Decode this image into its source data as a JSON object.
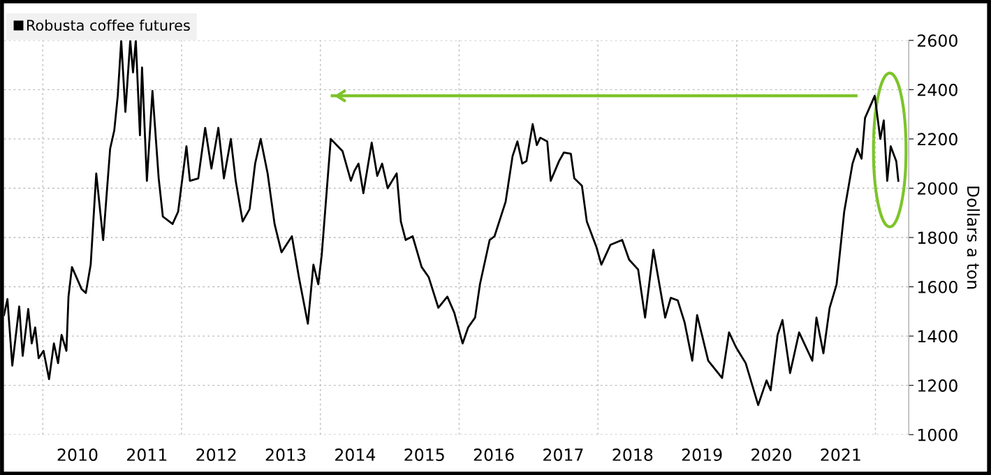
{
  "chart_data": {
    "type": "line",
    "ylabel": "Dollars a ton",
    "legend": "top left",
    "grid": true,
    "xlim": [
      2009.44,
      2022.48
    ],
    "ylim": [
      1000,
      2600
    ],
    "xticks": [
      {
        "value": 2010,
        "label": null
      },
      {
        "value": 2010.5,
        "label": "2010"
      },
      {
        "value": 2011.5,
        "label": "2011"
      },
      {
        "value": 2012,
        "label": null
      },
      {
        "value": 2012.5,
        "label": "2012"
      },
      {
        "value": 2013.5,
        "label": "2013"
      },
      {
        "value": 2014,
        "label": null
      },
      {
        "value": 2014.5,
        "label": "2014"
      },
      {
        "value": 2015.5,
        "label": "2015"
      },
      {
        "value": 2016,
        "label": null
      },
      {
        "value": 2016.5,
        "label": "2016"
      },
      {
        "value": 2017.5,
        "label": "2017"
      },
      {
        "value": 2018,
        "label": null
      },
      {
        "value": 2018.5,
        "label": "2018"
      },
      {
        "value": 2019.5,
        "label": "2019"
      },
      {
        "value": 2020,
        "label": null
      },
      {
        "value": 2020.5,
        "label": "2020"
      },
      {
        "value": 2021.5,
        "label": "2021"
      },
      {
        "value": 2022,
        "label": null
      }
    ],
    "yticks": [
      1000,
      1200,
      1400,
      1600,
      1800,
      2000,
      2200,
      2400,
      2600
    ],
    "series": [
      {
        "name": "Robusta coffee futures",
        "color": "#000000",
        "x": [
          2009.44,
          2009.49,
          2009.56,
          2009.66,
          2009.71,
          2009.79,
          2009.84,
          2009.89,
          2009.94,
          2010.01,
          2010.09,
          2010.16,
          2010.22,
          2010.27,
          2010.34,
          2010.37,
          2010.42,
          2010.56,
          2010.62,
          2010.69,
          2010.77,
          2010.87,
          2010.97,
          2011.03,
          2011.08,
          2011.13,
          2011.19,
          2011.26,
          2011.3,
          2011.34,
          2011.4,
          2011.43,
          2011.5,
          2011.58,
          2011.67,
          2011.73,
          2011.87,
          2011.95,
          2012.07,
          2012.12,
          2012.24,
          2012.34,
          2012.43,
          2012.53,
          2012.61,
          2012.71,
          2012.78,
          2012.88,
          2012.98,
          2013.06,
          2013.14,
          2013.24,
          2013.34,
          2013.44,
          2013.59,
          2013.69,
          2013.82,
          2013.9,
          2013.97,
          2014.02,
          2014.15,
          2014.32,
          2014.44,
          2014.49,
          2014.55,
          2014.62,
          2014.74,
          2014.82,
          2014.89,
          2014.97,
          2015.1,
          2015.16,
          2015.23,
          2015.33,
          2015.46,
          2015.56,
          2015.7,
          2015.83,
          2015.93,
          2016.05,
          2016.13,
          2016.23,
          2016.3,
          2016.44,
          2016.51,
          2016.67,
          2016.77,
          2016.84,
          2016.91,
          2016.97,
          2017.06,
          2017.12,
          2017.17,
          2017.27,
          2017.32,
          2017.44,
          2017.51,
          2017.61,
          2017.66,
          2017.77,
          2017.84,
          2017.98,
          2018.05,
          2018.18,
          2018.35,
          2018.45,
          2018.58,
          2018.68,
          2018.8,
          2018.97,
          2019.05,
          2019.15,
          2019.25,
          2019.36,
          2019.43,
          2019.59,
          2019.79,
          2019.89,
          2019.99,
          2020.13,
          2020.31,
          2020.43,
          2020.49,
          2020.59,
          2020.66,
          2020.77,
          2020.9,
          2021.09,
          2021.15,
          2021.25,
          2021.34,
          2021.44,
          2021.55,
          2021.67,
          2021.74,
          2021.8,
          2021.85,
          2021.99,
          2022.07,
          2022.12,
          2022.17,
          2022.22,
          2022.3,
          2022.33
        ],
        "values": [
          1485,
          1550,
          1280,
          1520,
          1320,
          1510,
          1370,
          1435,
          1310,
          1340,
          1225,
          1370,
          1290,
          1405,
          1340,
          1560,
          1680,
          1590,
          1575,
          1690,
          2060,
          1790,
          2160,
          2235,
          2375,
          2600,
          2310,
          2600,
          2470,
          2600,
          2215,
          2490,
          2030,
          2395,
          2040,
          1885,
          1855,
          1905,
          2170,
          2030,
          2040,
          2245,
          2080,
          2245,
          2040,
          2200,
          2030,
          1865,
          1915,
          2100,
          2200,
          2060,
          1855,
          1740,
          1805,
          1640,
          1450,
          1690,
          1610,
          1730,
          2200,
          2150,
          2030,
          2070,
          2100,
          1980,
          2185,
          2050,
          2100,
          2000,
          2060,
          1865,
          1790,
          1805,
          1680,
          1640,
          1515,
          1560,
          1495,
          1370,
          1435,
          1475,
          1610,
          1790,
          1805,
          1945,
          2130,
          2190,
          2100,
          2110,
          2260,
          2175,
          2205,
          2190,
          2030,
          2110,
          2145,
          2140,
          2040,
          2010,
          1865,
          1760,
          1690,
          1770,
          1790,
          1710,
          1670,
          1475,
          1750,
          1475,
          1555,
          1545,
          1455,
          1300,
          1485,
          1300,
          1230,
          1415,
          1355,
          1290,
          1120,
          1220,
          1180,
          1405,
          1465,
          1250,
          1415,
          1300,
          1475,
          1330,
          1515,
          1610,
          1905,
          2100,
          2160,
          2120,
          2285,
          2375,
          2200,
          2275,
          2030,
          2170,
          2110,
          2030
        ]
      },
      {
        "color": "#7dc42a",
        "x": [
          2021.72,
          2014.17
        ],
        "values": [
          2375,
          2375
        ]
      }
    ]
  }
}
